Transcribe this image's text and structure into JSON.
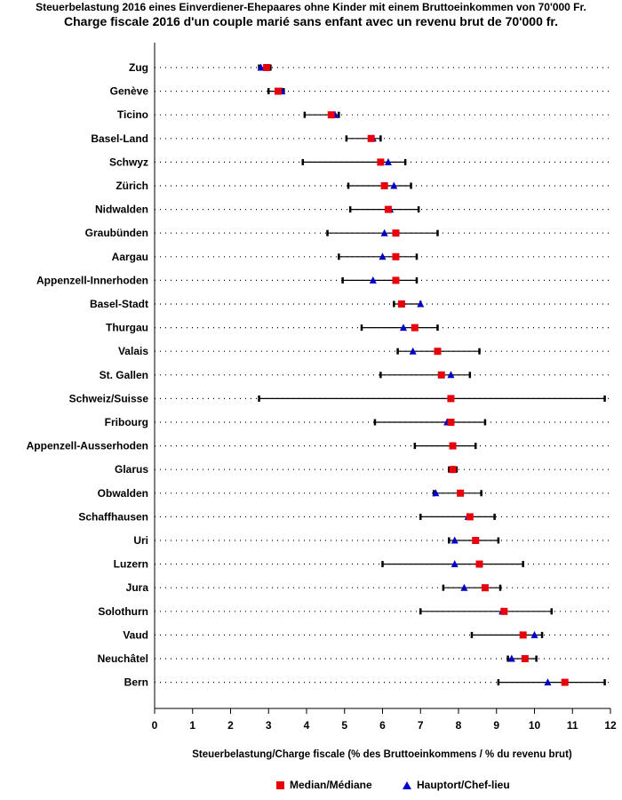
{
  "chart_data": {
    "type": "dot-range",
    "title": "Steuerbelastung 2016 eines Einverdiener-Ehepaares ohne Kinder mit einem Bruttoeinkommen von 70'000 Fr.",
    "subtitle": "Charge fiscale 2016 d'un couple marié sans enfant avec un revenu brut de 70'000 fr.",
    "xlabel": "Steuerbelastung/Charge fiscale (% des Bruttoeinkommens / % du revenu brut)",
    "ylabel": "",
    "xlim": [
      0,
      12
    ],
    "xticks": [
      "0",
      "1",
      "2",
      "3",
      "4",
      "5",
      "6",
      "7",
      "8",
      "9",
      "10",
      "11",
      "12"
    ],
    "legend": [
      {
        "name": "Median/Médiane",
        "marker": "square",
        "color": "#e8000b"
      },
      {
        "name": "Hauptort/Chef-lieu",
        "marker": "triangle",
        "color": "#0000c8"
      }
    ],
    "categories": [
      "Zug",
      "Genève",
      "Ticino",
      "Basel-Land",
      "Schwyz",
      "Zürich",
      "Nidwalden",
      "Graubünden",
      "Aargau",
      "Appenzell-Innerhoden",
      "Basel-Stadt",
      "Thurgau",
      "Valais",
      "St. Gallen",
      "Schweiz/Suisse",
      "Fribourg",
      "Appenzell-Ausserhoden",
      "Glarus",
      "Obwalden",
      "Schaffhausen",
      "Uri",
      "Luzern",
      "Jura",
      "Solothurn",
      "Vaud",
      "Neuchâtel",
      "Bern"
    ],
    "series": [
      {
        "name": "Minimum",
        "values": [
          2.75,
          3.0,
          3.95,
          5.05,
          3.9,
          5.1,
          5.15,
          4.55,
          4.85,
          4.95,
          6.3,
          5.45,
          6.4,
          5.95,
          2.75,
          5.8,
          6.85,
          7.75,
          7.35,
          7.0,
          7.75,
          6.0,
          7.6,
          7.0,
          8.35,
          9.3,
          9.05
        ]
      },
      {
        "name": "Maximum",
        "values": [
          3.05,
          3.4,
          4.85,
          5.95,
          6.6,
          6.75,
          6.95,
          7.45,
          6.9,
          6.9,
          7.0,
          7.45,
          8.55,
          8.3,
          11.85,
          8.7,
          8.45,
          7.95,
          8.6,
          8.95,
          9.05,
          9.7,
          9.1,
          10.45,
          10.2,
          10.05,
          11.85
        ]
      },
      {
        "name": "Median/Médiane",
        "values": [
          2.95,
          3.25,
          4.65,
          5.7,
          5.95,
          6.05,
          6.15,
          6.35,
          6.35,
          6.35,
          6.5,
          6.85,
          7.45,
          7.55,
          7.8,
          7.8,
          7.85,
          7.85,
          8.05,
          8.3,
          8.45,
          8.55,
          8.7,
          9.2,
          9.7,
          9.75,
          10.8
        ]
      },
      {
        "name": "Hauptort/Chef-lieu",
        "values": [
          2.8,
          3.35,
          4.75,
          5.75,
          6.15,
          6.3,
          6.2,
          6.05,
          6.0,
          5.75,
          7.0,
          6.55,
          6.8,
          7.8,
          null,
          7.7,
          7.85,
          7.85,
          7.4,
          8.25,
          7.9,
          7.9,
          8.15,
          9.15,
          10.0,
          9.4,
          10.35
        ]
      }
    ]
  }
}
